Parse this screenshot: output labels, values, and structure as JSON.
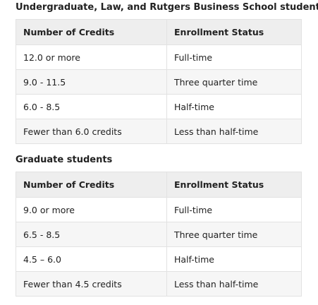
{
  "sections": [
    {
      "heading": "Undergraduate, Law, and Rutgers Business School students",
      "columns": [
        "Number of Credits",
        "Enrollment Status"
      ],
      "rows": [
        [
          "12.0 or more",
          "Full-time"
        ],
        [
          "9.0 - 11.5",
          "Three quarter time"
        ],
        [
          "6.0 - 8.5",
          "Half-time"
        ],
        [
          "Fewer than 6.0 credits",
          "Less than half-time"
        ]
      ]
    },
    {
      "heading": "Graduate students",
      "columns": [
        "Number of Credits",
        "Enrollment Status"
      ],
      "rows": [
        [
          "9.0 or more",
          "Full-time"
        ],
        [
          "6.5 - 8.5",
          "Three quarter time"
        ],
        [
          "4.5 – 6.0",
          "Half-time"
        ],
        [
          "Fewer than 4.5 credits",
          "Less than half-time"
        ]
      ]
    }
  ]
}
